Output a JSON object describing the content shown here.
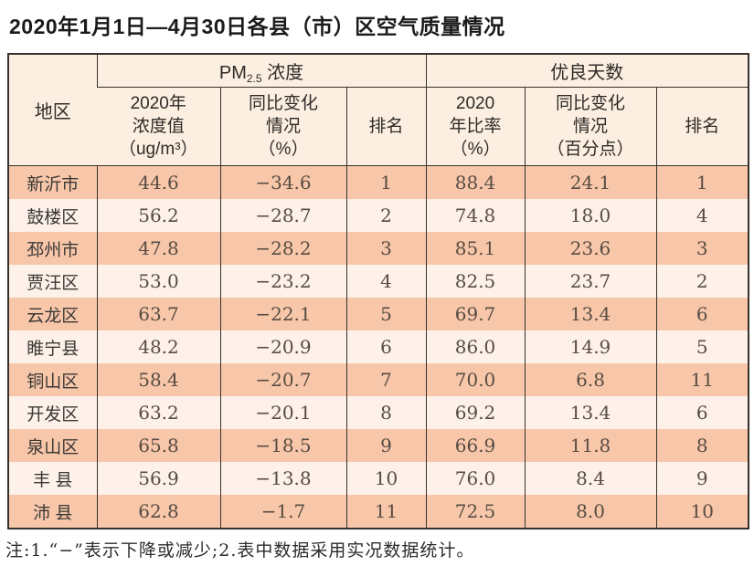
{
  "title": "2020年1月1日—4月30日各县（市）区空气质量情况",
  "table": {
    "region_header": "地区",
    "group_pm25": {
      "pre": "PM",
      "sub": "2.5",
      "post": " 浓度"
    },
    "group_good_days": "优良天数",
    "subheaders": {
      "pm_value": "2020年\n浓度值\n（ug/m³）",
      "pm_change": "同比变化\n情况\n（%）",
      "pm_rank": "排名",
      "good_rate": "2020\n年比率\n（%）",
      "good_change": "同比变化\n情况\n（百分点）",
      "good_rank": "排名"
    },
    "rows": [
      {
        "region": "新沂市",
        "pm_value": "44.6",
        "pm_change": "−34.6",
        "pm_rank": "1",
        "good_rate": "88.4",
        "good_change": "24.1",
        "good_rank": "1"
      },
      {
        "region": "鼓楼区",
        "pm_value": "56.2",
        "pm_change": "−28.7",
        "pm_rank": "2",
        "good_rate": "74.8",
        "good_change": "18.0",
        "good_rank": "4"
      },
      {
        "region": "邳州市",
        "pm_value": "47.8",
        "pm_change": "−28.2",
        "pm_rank": "3",
        "good_rate": "85.1",
        "good_change": "23.6",
        "good_rank": "3"
      },
      {
        "region": "贾汪区",
        "pm_value": "53.0",
        "pm_change": "−23.2",
        "pm_rank": "4",
        "good_rate": "82.5",
        "good_change": "23.7",
        "good_rank": "2"
      },
      {
        "region": "云龙区",
        "pm_value": "63.7",
        "pm_change": "−22.1",
        "pm_rank": "5",
        "good_rate": "69.7",
        "good_change": "13.4",
        "good_rank": "6"
      },
      {
        "region": "睢宁县",
        "pm_value": "48.2",
        "pm_change": "−20.9",
        "pm_rank": "6",
        "good_rate": "86.0",
        "good_change": "14.9",
        "good_rank": "5"
      },
      {
        "region": "铜山区",
        "pm_value": "58.4",
        "pm_change": "−20.7",
        "pm_rank": "7",
        "good_rate": "70.0",
        "good_change": "6.8",
        "good_rank": "11"
      },
      {
        "region": "开发区",
        "pm_value": "63.2",
        "pm_change": "−20.1",
        "pm_rank": "8",
        "good_rate": "69.2",
        "good_change": "13.4",
        "good_rank": "6"
      },
      {
        "region": "泉山区",
        "pm_value": "65.8",
        "pm_change": "−18.5",
        "pm_rank": "9",
        "good_rate": "66.9",
        "good_change": "11.8",
        "good_rank": "8"
      },
      {
        "region": "丰 县",
        "pm_value": "56.9",
        "pm_change": "−13.8",
        "pm_rank": "10",
        "good_rate": "76.0",
        "good_change": "8.4",
        "good_rank": "9"
      },
      {
        "region": "沛 县",
        "pm_value": "62.8",
        "pm_change": "−1.7",
        "pm_rank": "11",
        "good_rate": "72.5",
        "good_change": "8.0",
        "good_rank": "10"
      }
    ]
  },
  "note": "注:1.“−”表示下降或减少;2.表中数据采用实况数据统计。",
  "colors": {
    "row_odd": "#f8c7aa",
    "row_even": "#fdf1e9",
    "header_bg": "#fcefe2",
    "border": "#36312c",
    "title_text": "#1b1b1b",
    "data_text": "#584c42"
  }
}
